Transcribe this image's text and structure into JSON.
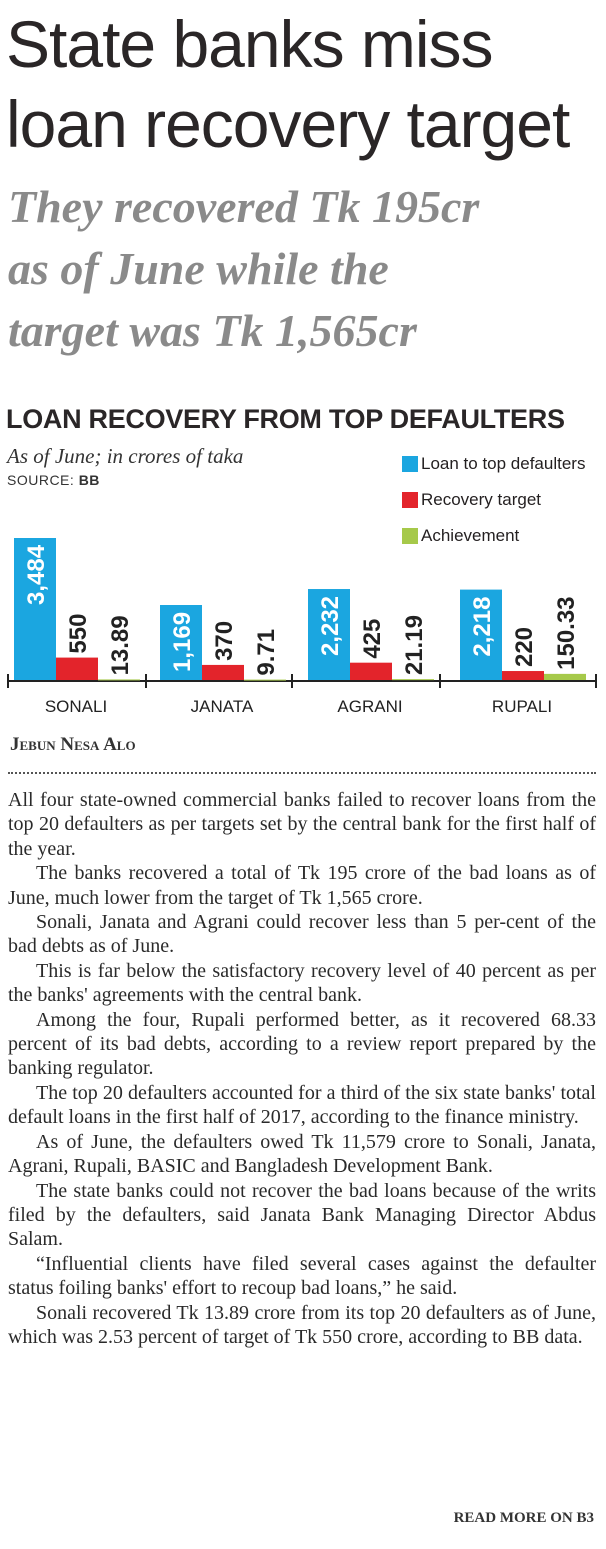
{
  "headline": {
    "line1": "State banks miss",
    "line2": "loan recovery target"
  },
  "subheadline": {
    "line1": "They recovered Tk 195cr",
    "line2": "as of June while the",
    "line3": "target was Tk 1,565cr"
  },
  "chart_data": {
    "type": "bar",
    "title": "LOAN RECOVERY FROM TOP DEFAULTERS",
    "subtitle": "As of June; in crores of taka",
    "source_label": "SOURCE:",
    "source": "BB",
    "categories": [
      "SONALI",
      "JANATA",
      "AGRANI",
      "RUPALI"
    ],
    "series": [
      {
        "name": "Loan to top defaulters",
        "color": "#1ba6e0",
        "values": [
          3484,
          1169,
          2232,
          2218
        ],
        "labels": [
          "3,484",
          "1,169",
          "2,232",
          "2,218"
        ]
      },
      {
        "name": "Recovery target",
        "color": "#e3242b",
        "values": [
          550,
          370,
          425,
          220
        ],
        "labels": [
          "550",
          "370",
          "425",
          "220"
        ]
      },
      {
        "name": "Achievement",
        "color": "#a6c94a",
        "values": [
          13.89,
          9.71,
          21.19,
          150.33
        ],
        "labels": [
          "13.89",
          "9.71",
          "21.19",
          "150.33"
        ]
      }
    ],
    "legend": "top-right",
    "xlabel": "",
    "ylabel": ""
  },
  "byline": "Jebun Nesa Alo",
  "paragraphs": [
    "All four state-owned commercial banks failed to recover loans from the top 20 defaulters as per targets set by the central bank for the first half of the year.",
    "The banks recovered a total of Tk 195 crore of the bad loans as of June, much lower from the target of Tk 1,565 crore.",
    "Sonali, Janata and Agrani could recover less than 5 per-cent of the bad debts as of June.",
    "This is far below the satisfactory recovery level of 40 percent as per the banks' agreements with the central bank.",
    "Among the four, Rupali performed better, as it recovered 68.33 percent of its bad debts, according to a review report prepared by the banking regulator.",
    "The top 20 defaulters accounted for a third of the six state banks' total default loans in the first half of 2017, according to the finance ministry.",
    "As of June, the defaulters owed Tk 11,579 crore to Sonali, Janata, Agrani, Rupali, BASIC and Bangladesh Development Bank.",
    "The state banks could not recover the bad loans because of the writs filed by the defaulters, said Janata Bank Managing Director Abdus Salam.",
    "“Influential clients have filed several cases against the defaulter status foiling banks' effort to recoup bad loans,” he said.",
    "Sonali recovered Tk 13.89 crore from its top 20 defaulters as of June, which was 2.53 percent of target of Tk 550 crore, according to BB data."
  ],
  "read_more": "READ MORE ON B3"
}
